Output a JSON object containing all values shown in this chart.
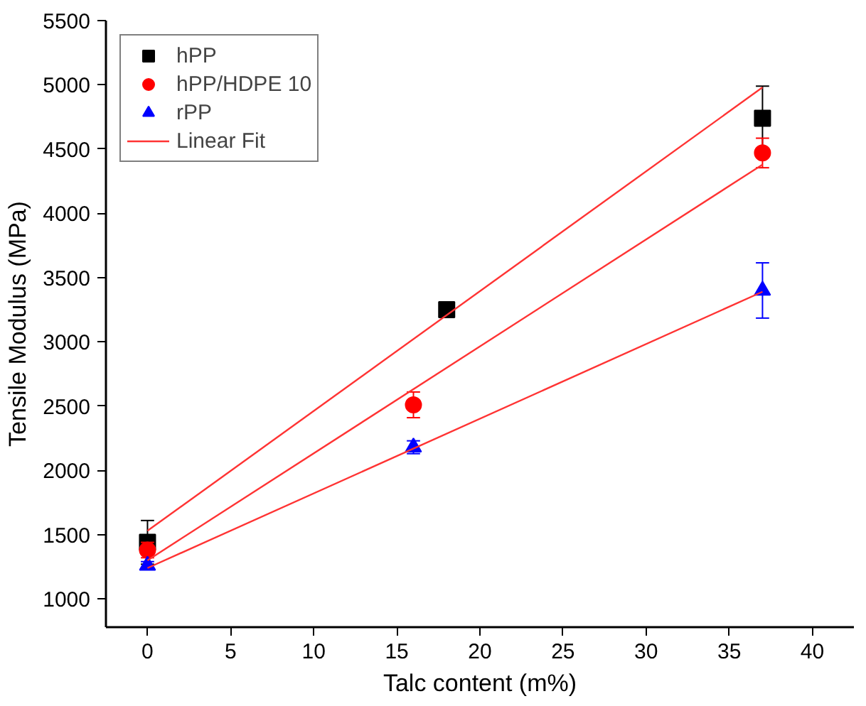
{
  "chart_data": {
    "type": "scatter",
    "xlabel": "Talc content (m%)",
    "ylabel": "Tensile Modulus (MPa)",
    "xlim": [
      -2.5,
      42.5
    ],
    "ylim": [
      780,
      5500
    ],
    "xticks": [
      0,
      5,
      10,
      15,
      20,
      25,
      30,
      35,
      40
    ],
    "yticks": [
      1000,
      1500,
      2000,
      2500,
      3000,
      3500,
      4000,
      4500,
      5000,
      5500
    ],
    "grid": false,
    "legend": "top left",
    "series": [
      {
        "name": "hPP",
        "color": "#000000",
        "marker": "square",
        "x": [
          0,
          18,
          37
        ],
        "values": [
          1440,
          3250,
          4740
        ],
        "errors": [
          170,
          50,
          250
        ]
      },
      {
        "name": "hPP/HDPE 10",
        "color": "#ff0000",
        "marker": "circle",
        "x": [
          0,
          16,
          37
        ],
        "values": [
          1380,
          2510,
          4470
        ],
        "errors": [
          60,
          100,
          115
        ]
      },
      {
        "name": "rPP",
        "color": "#0000ff",
        "marker": "triangle",
        "x": [
          0,
          16,
          37
        ],
        "values": [
          1260,
          2180,
          3400
        ],
        "errors": [
          30,
          50,
          215
        ]
      },
      {
        "name": "Linear Fit",
        "type": "line",
        "color": "#ff3333",
        "x": [
          0,
          37
        ],
        "values": [
          1530,
          4980
        ]
      },
      {
        "type": "line",
        "color": "#ff3333",
        "x": [
          0,
          37
        ],
        "values": [
          1300,
          4380
        ]
      },
      {
        "type": "line",
        "color": "#ff3333",
        "x": [
          0,
          37
        ],
        "values": [
          1240,
          3390
        ]
      }
    ]
  }
}
